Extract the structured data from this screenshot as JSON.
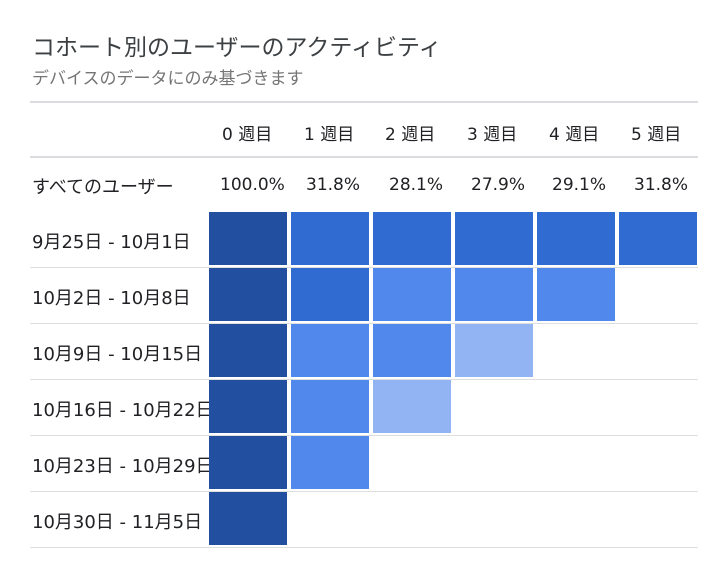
{
  "chart_data": {
    "type": "heatmap",
    "title": "コホート別のユーザーのアクティビティ",
    "subtitle": "デバイスのデータにのみ基づきます",
    "columns": [
      "0 週目",
      "1 週目",
      "2 週目",
      "3 週目",
      "4 週目",
      "5 週目"
    ],
    "total_row": {
      "label": "すべてのユーザー",
      "values": [
        "100.0%",
        "31.8%",
        "28.1%",
        "27.9%",
        "29.1%",
        "31.8%"
      ]
    },
    "rows": [
      {
        "label": "9月25日 - 10月1日",
        "levels": [
          4,
          3,
          3,
          3,
          3,
          3
        ]
      },
      {
        "label": "10月2日 - 10月8日",
        "levels": [
          4,
          3,
          2,
          2,
          2
        ]
      },
      {
        "label": "10月9日 - 10月15日",
        "levels": [
          4,
          2,
          2,
          1
        ]
      },
      {
        "label": "10月16日 - 10月22日",
        "levels": [
          4,
          2,
          1
        ]
      },
      {
        "label": "10月23日 - 10月29日",
        "levels": [
          4,
          2
        ]
      },
      {
        "label": "10月30日 - 11月5日",
        "levels": [
          4
        ]
      }
    ],
    "level_colors": {
      "1": "#93b4f3",
      "2": "#5088ec",
      "3": "#2f6bd0",
      "4": "#234fa0"
    }
  }
}
